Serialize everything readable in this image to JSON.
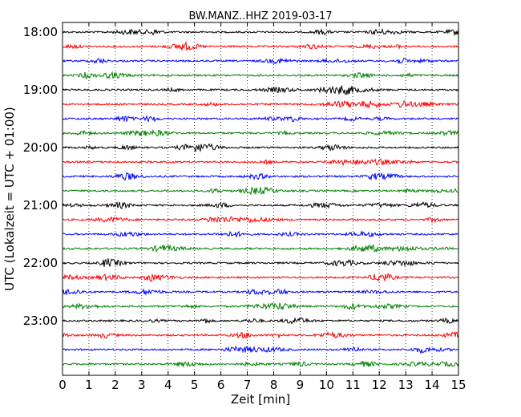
{
  "chart_data": {
    "type": "line",
    "title": "BW.MANZ..HHZ 2019-03-17",
    "xlabel": "Zeit  [min]",
    "ylabel": "UTC (Lokalzeit = UTC + 01:00)",
    "xlim": [
      0,
      15
    ],
    "x_ticks": [
      "0",
      "1",
      "2",
      "3",
      "4",
      "5",
      "6",
      "7",
      "8",
      "9",
      "10",
      "11",
      "12",
      "13",
      "14",
      "15"
    ],
    "y_tick_labels": [
      "18:00",
      "19:00",
      "20:00",
      "21:00",
      "22:00",
      "23:00"
    ],
    "grid": "vertical dotted at each minute",
    "trace_colors": [
      "#000000",
      "#ff0000",
      "#0000ff",
      "#008000"
    ],
    "traces": [
      {
        "start": "18:00",
        "color": "#000000"
      },
      {
        "start": "18:15",
        "color": "#ff0000"
      },
      {
        "start": "18:30",
        "color": "#0000ff"
      },
      {
        "start": "18:45",
        "color": "#008000"
      },
      {
        "start": "19:00",
        "color": "#000000"
      },
      {
        "start": "19:15",
        "color": "#ff0000"
      },
      {
        "start": "19:30",
        "color": "#0000ff"
      },
      {
        "start": "19:45",
        "color": "#008000"
      },
      {
        "start": "20:00",
        "color": "#000000"
      },
      {
        "start": "20:15",
        "color": "#ff0000"
      },
      {
        "start": "20:30",
        "color": "#0000ff"
      },
      {
        "start": "20:45",
        "color": "#008000"
      },
      {
        "start": "21:00",
        "color": "#000000"
      },
      {
        "start": "21:15",
        "color": "#ff0000"
      },
      {
        "start": "21:30",
        "color": "#0000ff"
      },
      {
        "start": "21:45",
        "color": "#008000"
      },
      {
        "start": "22:00",
        "color": "#000000"
      },
      {
        "start": "22:15",
        "color": "#ff0000"
      },
      {
        "start": "22:30",
        "color": "#0000ff"
      },
      {
        "start": "22:45",
        "color": "#008000"
      },
      {
        "start": "23:00",
        "color": "#000000"
      },
      {
        "start": "23:15",
        "color": "#ff0000"
      },
      {
        "start": "23:30",
        "color": "#0000ff"
      },
      {
        "start": "23:45",
        "color": "#008000"
      }
    ]
  }
}
